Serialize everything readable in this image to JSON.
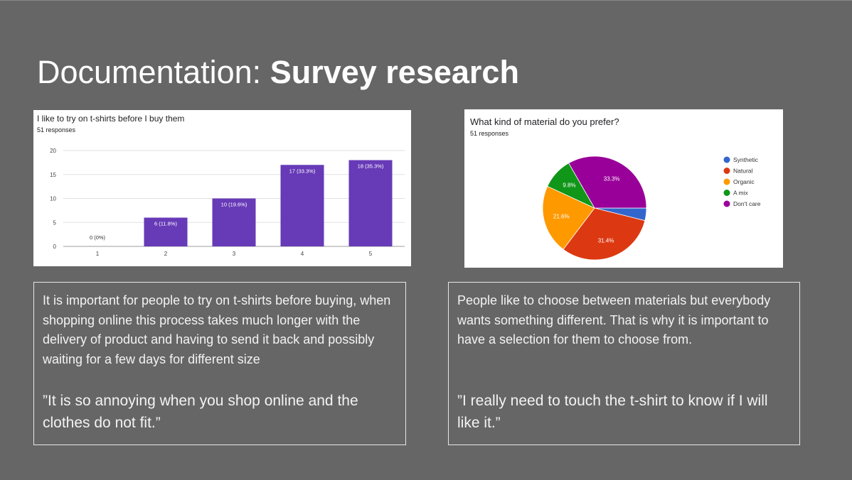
{
  "slide": {
    "title_regular": "Documentation: ",
    "title_bold": "Survey research"
  },
  "chart_data": [
    {
      "type": "bar",
      "title": "I like to try on t-shirts before I buy them",
      "subtitle": "51 responses",
      "categories": [
        "1",
        "2",
        "3",
        "4",
        "5"
      ],
      "values": [
        0,
        6,
        10,
        17,
        18
      ],
      "data_labels": [
        "0 (0%)",
        "6 (11.8%)",
        "10 (19.6%)",
        "17 (33.3%)",
        "18 (35.3%)"
      ],
      "yticks": [
        "0",
        "5",
        "10",
        "15",
        "20"
      ],
      "ylim": [
        0,
        20
      ],
      "grid": true,
      "color": "#673ab7"
    },
    {
      "type": "pie",
      "title": "What kind of material do you prefer?",
      "subtitle": "51 responses",
      "labels": [
        "Synthetic",
        "Natural",
        "Organic",
        "A mix",
        "Don't care"
      ],
      "values": [
        3.9,
        31.4,
        21.6,
        9.8,
        33.3
      ],
      "data_labels": [
        "",
        "31.4%",
        "21.6%",
        "9.8%",
        "33.3%"
      ],
      "colors": [
        "#3366cc",
        "#dc3912",
        "#ff9900",
        "#109618",
        "#990099"
      ],
      "legend": "right"
    }
  ],
  "notes": {
    "left": {
      "paragraph": "It is important for people to try on t-shirts before buying, when shopping online this process takes much longer with the delivery of product and having to send it back and possibly waiting for a few days for different size",
      "quote": "”It is so annoying when you shop online and the clothes do not fit.”"
    },
    "right": {
      "paragraph": "People like to choose between materials but everybody wants something different. That is why it is important to have a selection for them to choose from.",
      "quote": "”I really need to touch the t-shirt to know if I will like it.”"
    }
  }
}
